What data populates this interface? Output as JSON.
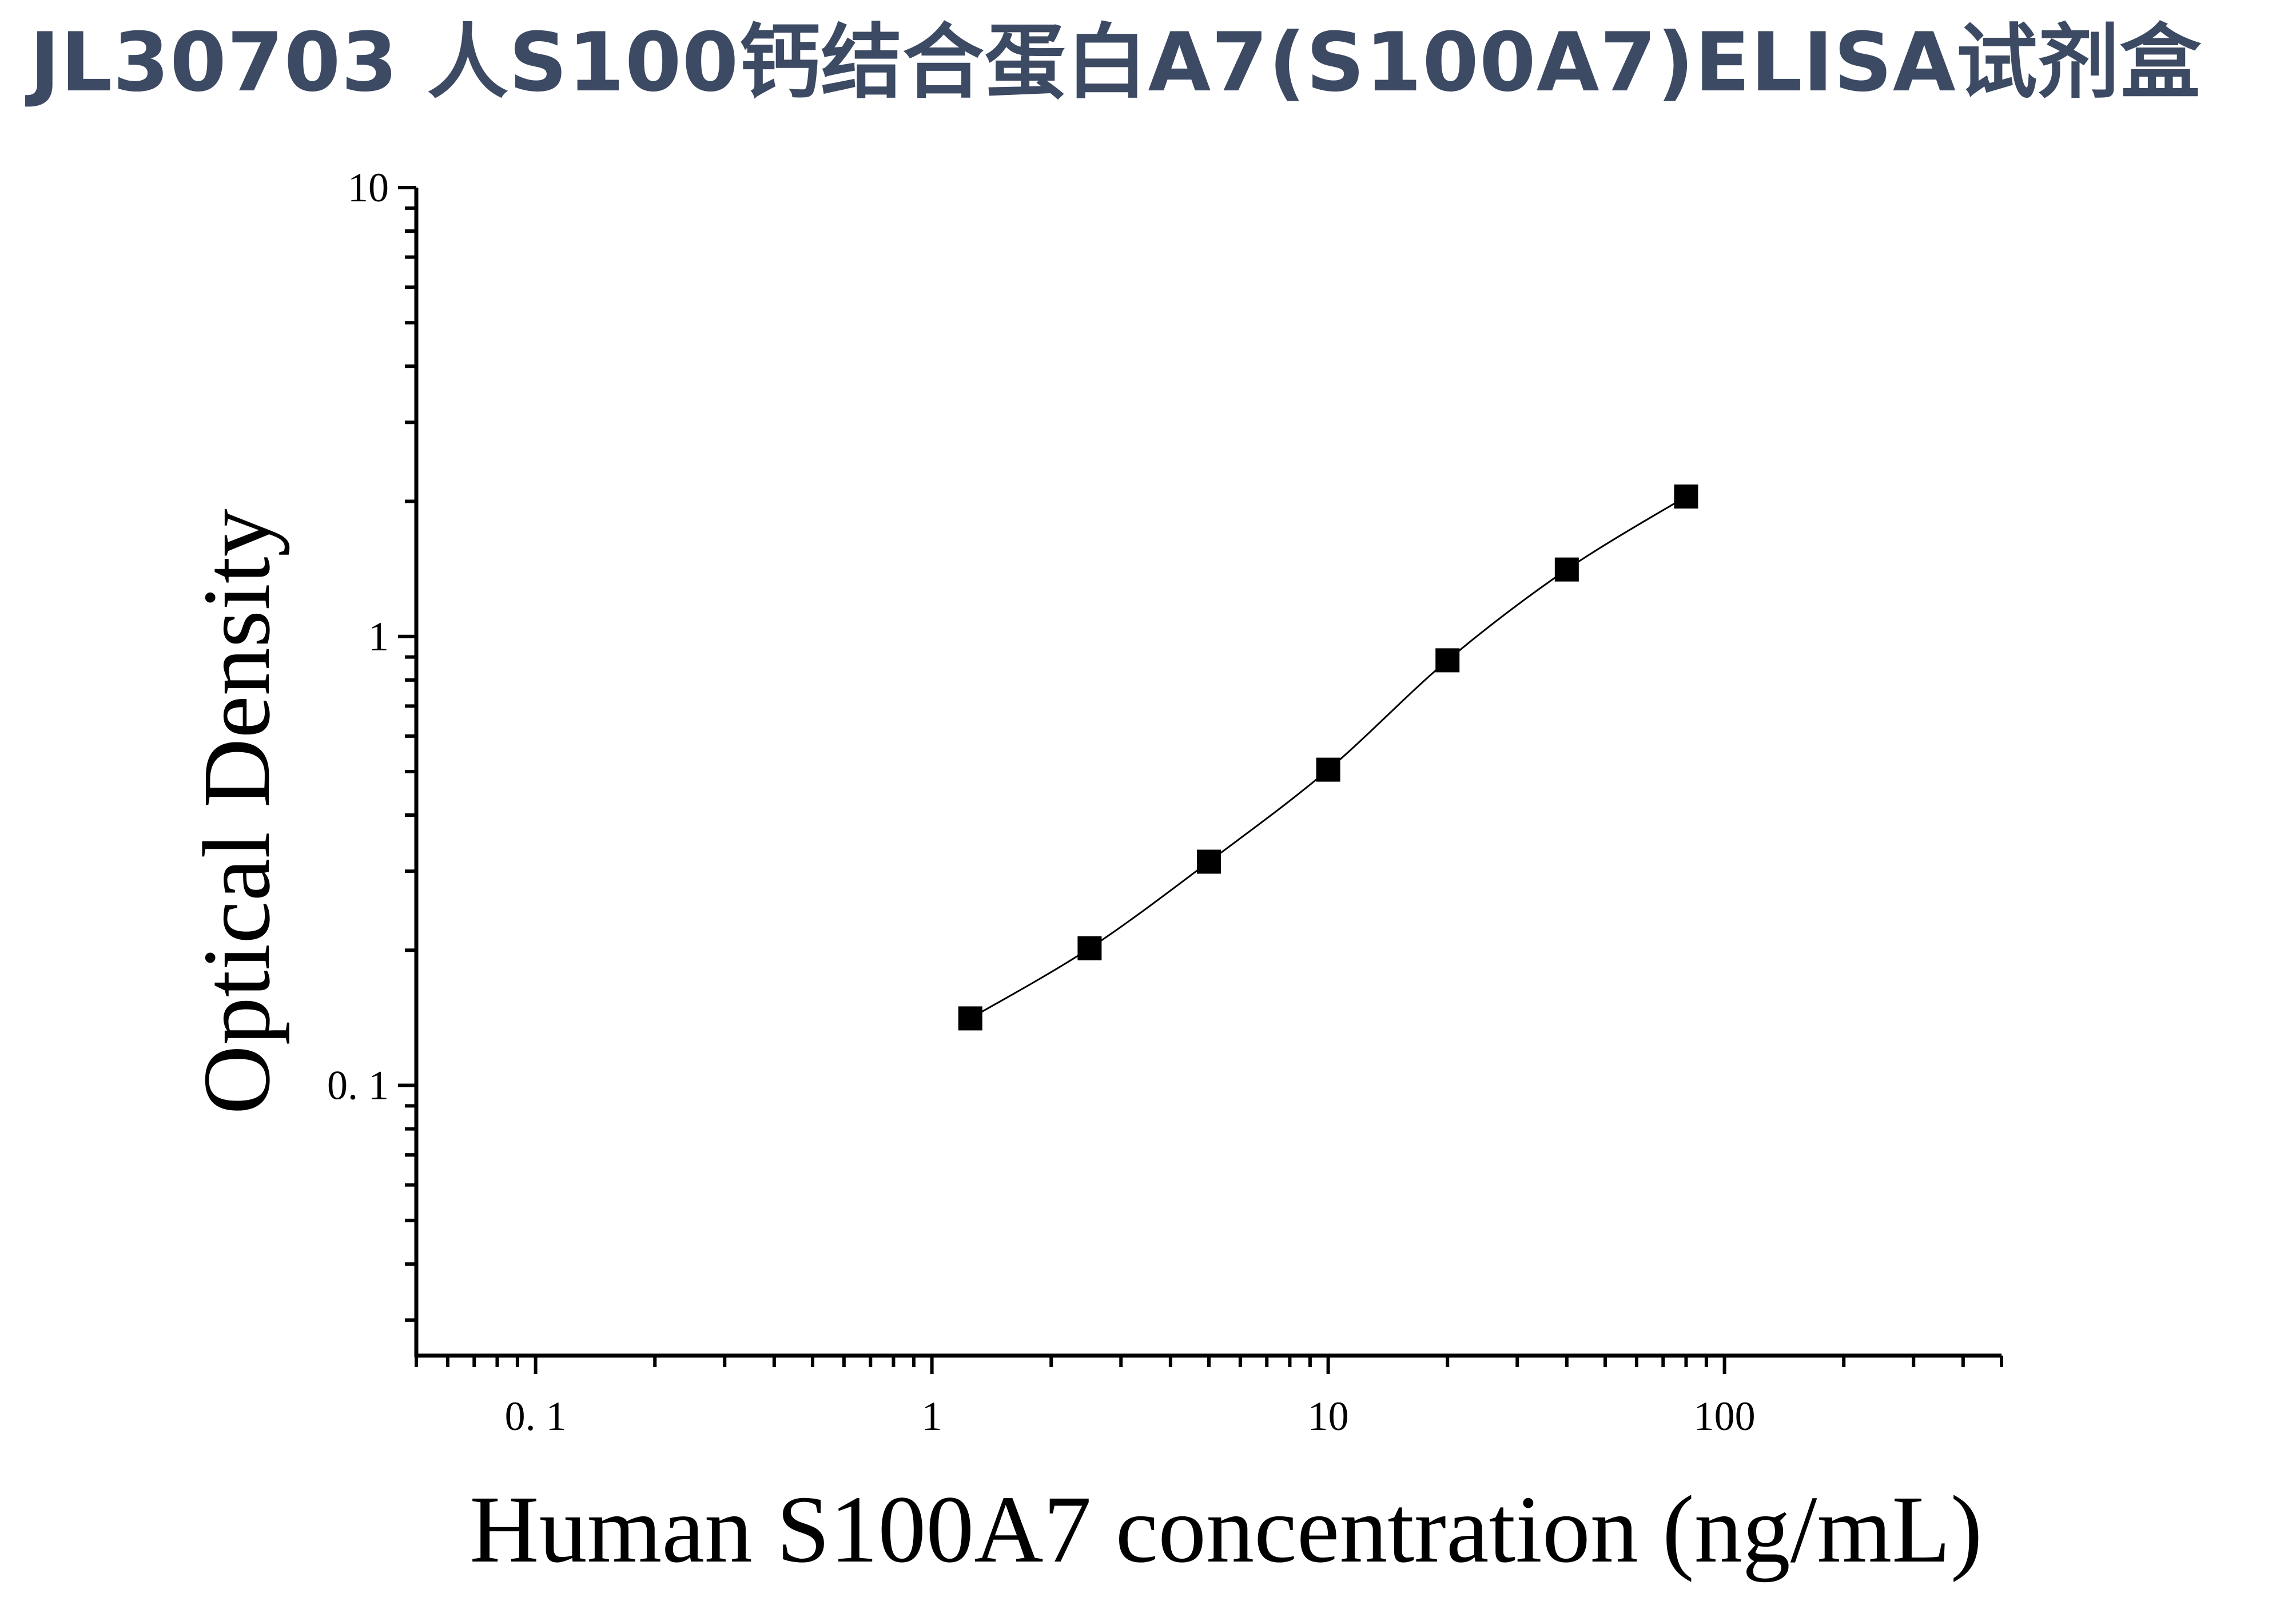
{
  "page": {
    "title": "JL30703 人S100钙结合蛋白A7(S100A7)ELISA试剂盒",
    "title_color": "#3c4a63"
  },
  "chart_data": {
    "type": "scatter",
    "x_scale": "log",
    "y_scale": "log",
    "xlim": [
      0.05,
      500
    ],
    "ylim": [
      0.025,
      10
    ],
    "xlabel": "Human S100A7 concentration (ng/mL)",
    "ylabel": "Optical Density",
    "x_ticks": [
      {
        "value": 0.1,
        "label": "0. 1"
      },
      {
        "value": 1,
        "label": "1"
      },
      {
        "value": 10,
        "label": "10"
      },
      {
        "value": 100,
        "label": "100"
      }
    ],
    "y_ticks": [
      {
        "value": 0.1,
        "label": "0. 1"
      },
      {
        "value": 1,
        "label": "1"
      },
      {
        "value": 10,
        "label": "10"
      }
    ],
    "grid": false,
    "series": [
      {
        "marker": "square",
        "color": "#000000",
        "points": [
          {
            "x": 1.25,
            "y": 0.141
          },
          {
            "x": 2.5,
            "y": 0.202
          },
          {
            "x": 5,
            "y": 0.315
          },
          {
            "x": 10,
            "y": 0.505
          },
          {
            "x": 20,
            "y": 0.885
          },
          {
            "x": 40,
            "y": 1.41
          },
          {
            "x": 80,
            "y": 2.05
          }
        ]
      }
    ],
    "fit_curve": true
  }
}
